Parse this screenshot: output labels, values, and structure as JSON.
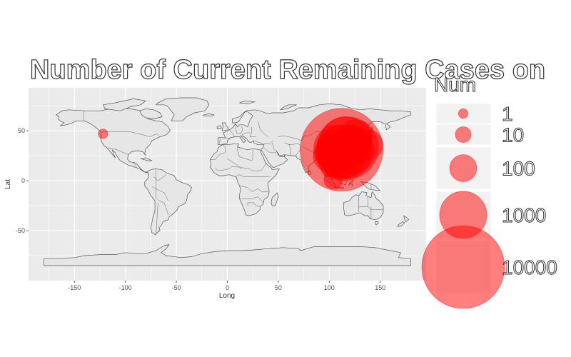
{
  "chart": {
    "title": "Number of Current Remaining Cases on",
    "x_axis_title": "Long",
    "y_axis_title": "Lat",
    "x_ticks": [
      "-150",
      "-100",
      "-50",
      "0",
      "50",
      "100",
      "150"
    ],
    "y_ticks": [
      "50",
      "0",
      "-50"
    ],
    "legend": {
      "title": "Num",
      "items": [
        {
          "label": "1",
          "value": 1
        },
        {
          "label": "10",
          "value": 10
        },
        {
          "label": "100",
          "value": 100
        },
        {
          "label": "1000",
          "value": 1000
        },
        {
          "label": "10000",
          "value": 10000
        }
      ]
    },
    "colors": {
      "panel": "#ebebeb",
      "grid": "#ffffff",
      "land": "#e6e6e6",
      "country_border": "#555555",
      "bubble_fill": "#ff0000",
      "bubble_fill_opacity": 0.5
    }
  },
  "chart_data": {
    "type": "scatter",
    "xlabel": "Long",
    "ylabel": "Lat",
    "xlim": [
      -195,
      195
    ],
    "ylim": [
      -100,
      93
    ],
    "size_variable": "Num",
    "points": [
      {
        "lon": 112,
        "lat": 31,
        "num": 10000
      },
      {
        "lon": 118,
        "lat": 33,
        "num": 3000
      },
      {
        "lon": 114,
        "lat": 28,
        "num": 2000
      },
      {
        "lon": 116,
        "lat": 38,
        "num": 1500
      },
      {
        "lon": 108,
        "lat": 32,
        "num": 1000
      },
      {
        "lon": 121,
        "lat": 30,
        "num": 1000
      },
      {
        "lon": 113,
        "lat": 24,
        "num": 800
      },
      {
        "lon": 106,
        "lat": 28,
        "num": 500
      },
      {
        "lon": 110,
        "lat": 20,
        "num": 300
      },
      {
        "lon": 120,
        "lat": 36,
        "num": 400
      },
      {
        "lon": 100,
        "lat": 25,
        "num": 200
      },
      {
        "lon": 104,
        "lat": 36,
        "num": 150
      },
      {
        "lon": 126,
        "lat": 45,
        "num": 200
      },
      {
        "lon": 123,
        "lat": 41,
        "num": 150
      },
      {
        "lon": 128,
        "lat": 36,
        "num": 100
      },
      {
        "lon": 138,
        "lat": 36,
        "num": 150
      },
      {
        "lon": 101,
        "lat": 13,
        "num": 20
      },
      {
        "lon": 104,
        "lat": 1,
        "num": 20
      },
      {
        "lon": 121,
        "lat": 24,
        "num": 15
      },
      {
        "lon": -122,
        "lat": 47,
        "num": 1
      }
    ]
  }
}
